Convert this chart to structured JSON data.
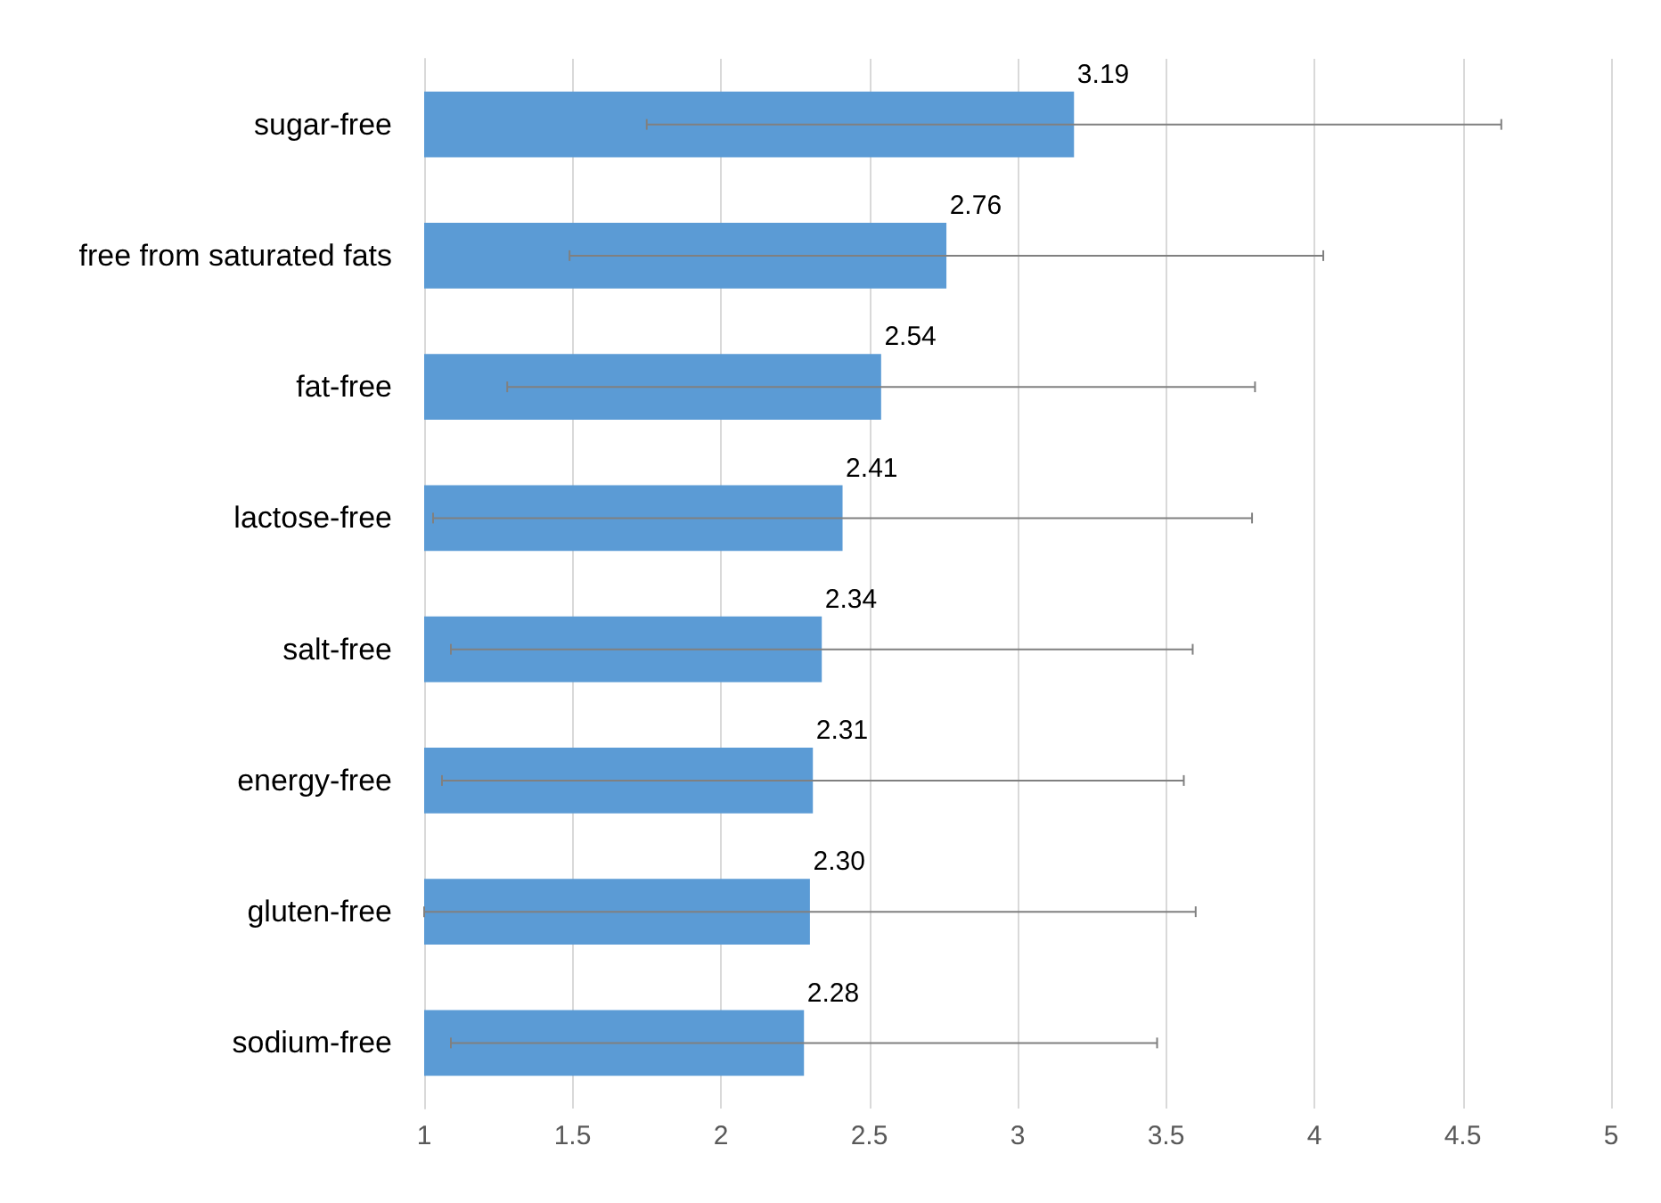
{
  "chart_data": {
    "type": "bar",
    "orientation": "horizontal",
    "categories": [
      "sugar-free",
      "free from saturated fats",
      "fat-free",
      "lactose-free",
      "salt-free",
      "energy-free",
      "gluten-free",
      "sodium-free"
    ],
    "values": [
      3.19,
      2.76,
      2.54,
      2.41,
      2.34,
      2.31,
      2.3,
      2.28
    ],
    "value_labels": [
      "3.19",
      "2.76",
      "2.54",
      "2.41",
      "2.34",
      "2.31",
      "2.30",
      "2.28"
    ],
    "errors": [
      1.44,
      1.27,
      1.26,
      1.38,
      1.25,
      1.25,
      1.3,
      1.19
    ],
    "color": "#5b9bd5",
    "xlim": [
      1,
      5
    ],
    "xticks": [
      1,
      1.5,
      2,
      2.5,
      3,
      3.5,
      4,
      4.5,
      5
    ],
    "grid": "x"
  }
}
